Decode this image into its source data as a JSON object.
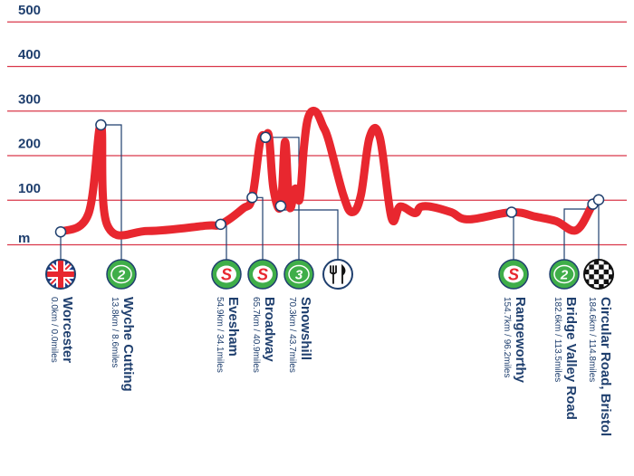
{
  "chart_data": {
    "type": "area",
    "title": "",
    "xlabel": "",
    "ylabel": "m",
    "ylim": [
      0,
      500
    ],
    "y_ticks": [
      "500",
      "400",
      "300",
      "200",
      "100"
    ],
    "grid": true,
    "line_color": "#e8272f",
    "grid_color": "#d9374a",
    "text_color": "#1f3f6e",
    "green_color": "#3fae49",
    "profile_km": [
      0,
      9.5,
      13.8,
      16.0,
      30.0,
      50.0,
      54.9,
      62.5,
      65.7,
      68.5,
      70.3,
      71.5,
      73.0,
      75.5,
      77.0,
      78.5,
      80.5,
      82.0,
      83.5,
      85.0,
      87.5,
      90.0,
      92.0,
      97.0,
      100.0,
      103.0,
      106.0,
      109.5,
      113.5,
      116.5,
      121.5,
      123.5,
      127.5,
      134.0,
      140.0,
      154.7,
      163.0,
      170.0,
      177.0,
      182.6,
      184.6
    ],
    "profile_elev_m": [
      28,
      68,
      268,
      43,
      30,
      42,
      45,
      80,
      105,
      232,
      240,
      240,
      125,
      86,
      230,
      85,
      125,
      102,
      220,
      286,
      298,
      265,
      232,
      110,
      72,
      110,
      240,
      240,
      60,
      85,
      70,
      84,
      84,
      72,
      56,
      72,
      62,
      52,
      32,
      90,
      100
    ],
    "locations": [
      {
        "name": "Worcester",
        "distance": "0.0km / 0.0miles",
        "km": 0.0,
        "elev": 28,
        "icon": "union-jack-flag-icon"
      },
      {
        "name": "Wyche Cutting",
        "distance": "13.8km / 8.6miles",
        "km": 13.8,
        "elev": 268,
        "icon": "category-2-climb-icon",
        "badge": "2"
      },
      {
        "name": "Evesham",
        "distance": "54.9km / 34.1miles",
        "km": 54.9,
        "elev": 45,
        "icon": "sprint-icon",
        "badge": "S"
      },
      {
        "name": "Broadway",
        "distance": "65.7km / 40.9miles",
        "km": 65.7,
        "elev": 105,
        "icon": "sprint-icon",
        "badge": "S"
      },
      {
        "name": "Snowshill",
        "distance": "70.3km / 43.7miles",
        "km": 70.3,
        "elev": 240,
        "icon": "category-3-climb-icon",
        "badge": "3"
      },
      {
        "name": "",
        "distance": "",
        "km": 75.5,
        "elev": 86,
        "icon": "feed-zone-fork-knife-icon"
      },
      {
        "name": "Rangeworthy",
        "distance": "154.7km / 96.2miles",
        "km": 154.7,
        "elev": 72,
        "icon": "sprint-icon",
        "badge": "S"
      },
      {
        "name": "Bridge Valley Road",
        "distance": "182.6km / 113.5miles",
        "km": 182.6,
        "elev": 90,
        "icon": "category-2-climb-icon",
        "badge": "2"
      },
      {
        "name": "Circular Road, Bristol",
        "distance": "184.6km / 114.8miles",
        "km": 184.6,
        "elev": 100,
        "icon": "finish-flag-icon"
      }
    ]
  }
}
